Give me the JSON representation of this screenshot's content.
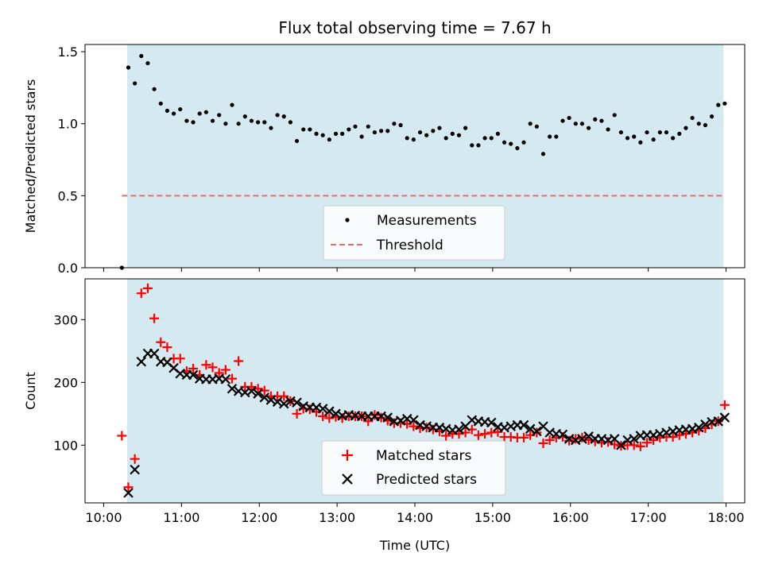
{
  "chart_data": [
    {
      "type": "scatter",
      "title": "Flux total observing time = 7.67 h",
      "ylabel": "Matched/Predicted stars",
      "xlabel": "",
      "xlim": [
        "10:00",
        "18:00"
      ],
      "ylim": [
        0,
        1.55
      ],
      "yticks": [
        "0.0",
        "0.5",
        "1.0",
        "1.5"
      ],
      "shaded_span": [
        "10:18",
        "17:58"
      ],
      "legend_position": "lower center",
      "series": [
        {
          "name": "Measurements",
          "marker": "dot",
          "color": "#000000",
          "x": [
            "10:14",
            "10:19",
            "10:24",
            "10:29",
            "10:34",
            "10:39",
            "10:44",
            "10:49",
            "10:54",
            "10:59",
            "11:04",
            "11:09",
            "11:14",
            "11:19",
            "11:24",
            "11:29",
            "11:34",
            "11:39",
            "11:44",
            "11:49",
            "11:54",
            "11:59",
            "12:04",
            "12:09",
            "12:14",
            "12:19",
            "12:24",
            "12:29",
            "12:34",
            "12:39",
            "12:44",
            "12:49",
            "12:54",
            "12:59",
            "13:04",
            "13:09",
            "13:14",
            "13:19",
            "13:24",
            "13:29",
            "13:34",
            "13:39",
            "13:44",
            "13:49",
            "13:54",
            "13:59",
            "14:04",
            "14:09",
            "14:14",
            "14:19",
            "14:24",
            "14:29",
            "14:34",
            "14:39",
            "14:44",
            "14:49",
            "14:54",
            "14:59",
            "15:04",
            "15:09",
            "15:14",
            "15:19",
            "15:24",
            "15:29",
            "15:34",
            "15:39",
            "15:44",
            "15:49",
            "15:54",
            "15:59",
            "16:04",
            "16:09",
            "16:14",
            "16:19",
            "16:24",
            "16:29",
            "16:34",
            "16:39",
            "16:44",
            "16:49",
            "16:54",
            "16:59",
            "17:04",
            "17:09",
            "17:14",
            "17:19",
            "17:24",
            "17:29",
            "17:34",
            "17:39",
            "17:44",
            "17:49",
            "17:54",
            "17:59"
          ],
          "y": [
            0.0,
            1.39,
            1.28,
            1.47,
            1.42,
            1.24,
            1.14,
            1.09,
            1.07,
            1.1,
            1.02,
            1.01,
            1.07,
            1.08,
            1.02,
            1.06,
            1.0,
            1.13,
            1.0,
            1.05,
            1.02,
            1.01,
            1.01,
            0.97,
            1.06,
            1.05,
            1.01,
            0.88,
            0.96,
            0.96,
            0.93,
            0.92,
            0.89,
            0.93,
            0.93,
            0.96,
            0.98,
            0.91,
            0.98,
            0.94,
            0.95,
            0.95,
            1.0,
            0.99,
            0.9,
            0.89,
            0.94,
            0.92,
            0.95,
            0.97,
            0.9,
            0.93,
            0.92,
            0.97,
            0.85,
            0.85,
            0.9,
            0.9,
            0.93,
            0.87,
            0.86,
            0.83,
            0.87,
            1.0,
            0.98,
            0.79,
            0.91,
            0.91,
            1.02,
            1.04,
            1.0,
            1.0,
            0.97,
            1.03,
            1.02,
            0.96,
            1.06,
            0.94,
            0.9,
            0.91,
            0.87,
            0.94,
            0.89,
            0.94,
            0.94,
            0.9,
            0.93,
            0.97,
            1.04,
            1.0,
            0.99,
            1.05,
            1.13,
            1.14
          ]
        },
        {
          "name": "Threshold",
          "style": "dashed",
          "color": "#f06a6a",
          "x": [
            "10:14",
            "17:59"
          ],
          "y": [
            0.5,
            0.5
          ]
        }
      ]
    },
    {
      "type": "scatter",
      "title": "",
      "ylabel": "Count",
      "xlabel": "Time (UTC)",
      "xlim": [
        "10:00",
        "18:00"
      ],
      "ylim": [
        8,
        365
      ],
      "yticks": [
        "100",
        "200",
        "300"
      ],
      "xticks": [
        "10:00",
        "11:00",
        "12:00",
        "13:00",
        "14:00",
        "15:00",
        "16:00",
        "17:00",
        "18:00"
      ],
      "shaded_span": [
        "10:18",
        "17:58"
      ],
      "legend_position": "lower center",
      "series": [
        {
          "name": "Matched stars",
          "marker": "plus",
          "color": "#ff0000",
          "x": [
            "10:14",
            "10:19",
            "10:24",
            "10:29",
            "10:34",
            "10:39",
            "10:44",
            "10:49",
            "10:54",
            "10:59",
            "11:04",
            "11:09",
            "11:14",
            "11:19",
            "11:24",
            "11:29",
            "11:34",
            "11:39",
            "11:44",
            "11:49",
            "11:54",
            "11:59",
            "12:04",
            "12:09",
            "12:14",
            "12:19",
            "12:24",
            "12:29",
            "12:34",
            "12:39",
            "12:44",
            "12:49",
            "12:54",
            "12:59",
            "13:04",
            "13:09",
            "13:14",
            "13:19",
            "13:24",
            "13:29",
            "13:34",
            "13:39",
            "13:44",
            "13:49",
            "13:54",
            "13:59",
            "14:04",
            "14:09",
            "14:14",
            "14:19",
            "14:24",
            "14:29",
            "14:34",
            "14:39",
            "14:44",
            "14:49",
            "14:54",
            "14:59",
            "15:04",
            "15:09",
            "15:14",
            "15:19",
            "15:24",
            "15:29",
            "15:34",
            "15:39",
            "15:44",
            "15:49",
            "15:54",
            "15:59",
            "16:04",
            "16:09",
            "16:14",
            "16:19",
            "16:24",
            "16:29",
            "16:34",
            "16:39",
            "16:44",
            "16:49",
            "16:54",
            "16:59",
            "17:04",
            "17:09",
            "17:14",
            "17:19",
            "17:24",
            "17:29",
            "17:34",
            "17:39",
            "17:44",
            "17:49",
            "17:54",
            "17:59"
          ],
          "y": [
            115,
            33,
            78,
            342,
            350,
            302,
            264,
            256,
            238,
            238,
            218,
            222,
            212,
            228,
            224,
            215,
            220,
            206,
            234,
            193,
            193,
            190,
            187,
            178,
            178,
            178,
            170,
            150,
            158,
            157,
            153,
            146,
            143,
            145,
            143,
            146,
            146,
            146,
            138,
            148,
            144,
            139,
            135,
            135,
            134,
            130,
            127,
            128,
            125,
            122,
            115,
            118,
            118,
            120,
            125,
            116,
            118,
            120,
            121,
            113,
            113,
            112,
            112,
            116,
            120,
            103,
            108,
            112,
            113,
            107,
            110,
            112,
            108,
            106,
            104,
            105,
            101,
            99,
            100,
            100,
            98,
            104,
            108,
            112,
            113,
            113,
            116,
            118,
            120,
            123,
            127,
            133,
            138,
            164
          ]
        },
        {
          "name": "Predicted stars",
          "marker": "x",
          "color": "#000000",
          "x": [
            "10:14",
            "10:19",
            "10:24",
            "10:29",
            "10:34",
            "10:39",
            "10:44",
            "10:49",
            "10:54",
            "10:59",
            "11:04",
            "11:09",
            "11:14",
            "11:19",
            "11:24",
            "11:29",
            "11:34",
            "11:39",
            "11:44",
            "11:49",
            "11:54",
            "11:59",
            "12:04",
            "12:09",
            "12:14",
            "12:19",
            "12:24",
            "12:29",
            "12:34",
            "12:39",
            "12:44",
            "12:49",
            "12:54",
            "12:59",
            "13:04",
            "13:09",
            "13:14",
            "13:19",
            "13:24",
            "13:29",
            "13:34",
            "13:39",
            "13:44",
            "13:49",
            "13:54",
            "13:59",
            "14:04",
            "14:09",
            "14:14",
            "14:19",
            "14:24",
            "14:29",
            "14:34",
            "14:39",
            "14:44",
            "14:49",
            "14:54",
            "14:59",
            "15:04",
            "15:09",
            "15:14",
            "15:19",
            "15:24",
            "15:29",
            "15:34",
            "15:39",
            "15:44",
            "15:49",
            "15:54",
            "15:59",
            "16:04",
            "16:09",
            "16:14",
            "16:19",
            "16:24",
            "16:29",
            "16:34",
            "16:39",
            "16:44",
            "16:49",
            "16:54",
            "16:59",
            "17:04",
            "17:09",
            "17:14",
            "17:19",
            "17:24",
            "17:29",
            "17:34",
            "17:39",
            "17:44",
            "17:49",
            "17:54",
            "17:59"
          ],
          "y": [
            null,
            24,
            61,
            233,
            246,
            246,
            233,
            232,
            223,
            214,
            212,
            212,
            206,
            205,
            205,
            206,
            205,
            190,
            186,
            184,
            186,
            182,
            176,
            172,
            169,
            166,
            170,
            168,
            162,
            160,
            160,
            158,
            154,
            150,
            147,
            148,
            147,
            146,
            146,
            146,
            146,
            144,
            138,
            139,
            142,
            140,
            132,
            130,
            128,
            128,
            126,
            124,
            125,
            130,
            140,
            138,
            137,
            136,
            129,
            128,
            130,
            132,
            132,
            126,
            122,
            130,
            120,
            118,
            117,
            110,
            108,
            110,
            114,
            110,
            110,
            108,
            110,
            100,
            108,
            110,
            115,
            116,
            116,
            118,
            120,
            122,
            124,
            125,
            126,
            128,
            133,
            137,
            138,
            144
          ]
        }
      ]
    }
  ]
}
